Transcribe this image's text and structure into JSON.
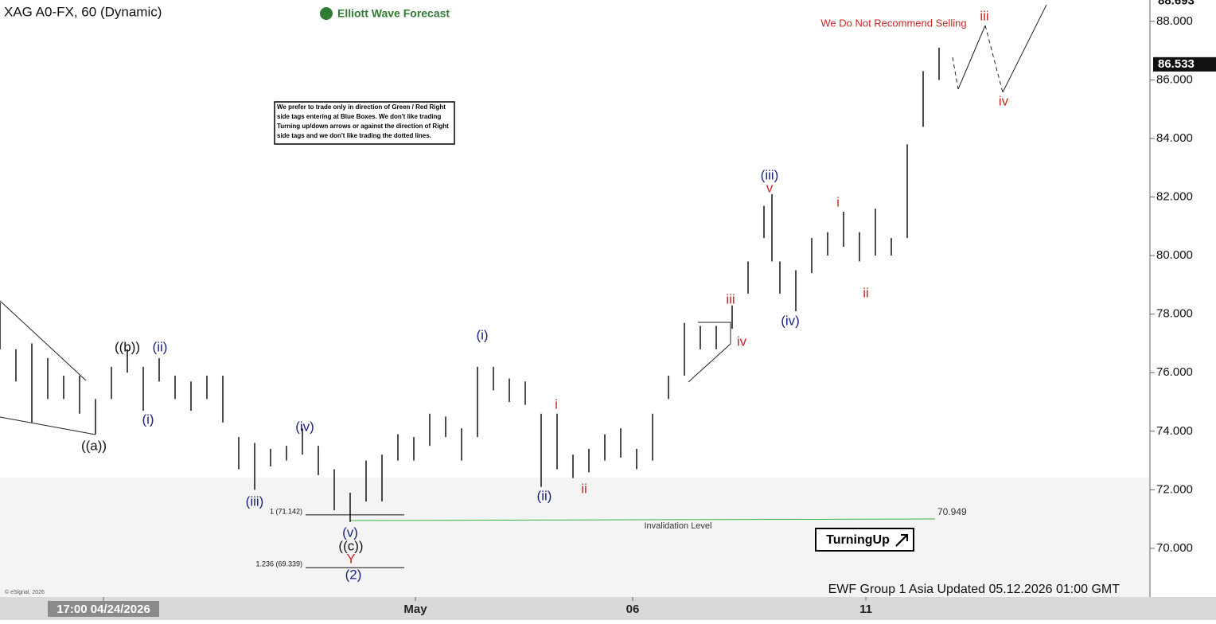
{
  "chart_data": {
    "type": "ohlc",
    "title": "XAG A0-FX, 60 (Dynamic)",
    "logo": "Elliott Wave Forecast",
    "note": [
      "We prefer to trade only in direction of Green / Red Right",
      "side tags entering at Blue Boxes. We don't like trading",
      "Turning up/down arrows or against the direction of Right",
      "side tags and we don't like trading the dotted lines."
    ],
    "warning": "We Do Not Recommend Selling",
    "signal": "TurningUp",
    "footer": "EWF Group 1 Asia Updated 05.12.2026 01:00 GMT",
    "copyright": "© eSignal, 2026",
    "color": "#111111",
    "x": [
      0,
      4,
      8,
      12,
      16,
      20,
      24,
      28,
      32,
      36,
      40,
      44,
      48,
      52,
      56,
      60,
      64,
      68,
      72,
      76,
      80,
      84,
      88,
      92,
      96,
      100,
      104,
      108,
      112,
      116,
      120,
      124,
      128,
      132,
      136,
      140,
      144,
      148,
      152,
      156,
      160,
      164,
      168,
      172,
      176,
      180,
      184,
      188,
      192,
      194,
      196,
      200,
      204,
      208,
      212,
      216,
      220,
      224,
      228,
      232,
      236
    ],
    "high": [
      78.4,
      76.8,
      77.0,
      76.5,
      75.9,
      75.9,
      75.1,
      76.2,
      76.8,
      76.2,
      76.5,
      75.9,
      75.7,
      75.9,
      75.9,
      73.8,
      73.6,
      73.4,
      73.5,
      74.1,
      73.5,
      72.7,
      71.9,
      73.0,
      73.2,
      73.9,
      73.8,
      74.6,
      74.5,
      74.1,
      76.2,
      76.2,
      75.8,
      75.7,
      74.6,
      74.6,
      73.2,
      73.4,
      73.9,
      74.1,
      73.4,
      74.6,
      75.9,
      77.7,
      77.6,
      77.6,
      78.3,
      79.8,
      81.7,
      82.1,
      79.8,
      79.5,
      80.6,
      80.8,
      81.5,
      80.8,
      81.6,
      80.6,
      83.8,
      86.3,
      87.1
    ],
    "low": [
      76.8,
      75.7,
      74.3,
      75.1,
      75.1,
      74.6,
      73.9,
      75.1,
      76.0,
      74.7,
      75.7,
      75.1,
      74.7,
      75.1,
      74.3,
      72.7,
      72.0,
      72.8,
      73.0,
      73.2,
      72.5,
      71.3,
      70.9,
      71.6,
      71.6,
      73.0,
      73.0,
      73.5,
      73.8,
      73.0,
      73.8,
      75.4,
      75.0,
      74.9,
      72.1,
      72.7,
      72.4,
      72.6,
      73.0,
      73.1,
      72.7,
      73.0,
      75.1,
      75.9,
      76.8,
      76.8,
      77.5,
      78.7,
      80.6,
      79.8,
      78.7,
      78.1,
      79.4,
      80.0,
      80.3,
      79.8,
      80.0,
      80.0,
      80.6,
      84.4,
      86.0
    ],
    "xlim": [
      0,
      289
    ],
    "xticks": [
      {
        "value": 26,
        "label": "17:00 04/24/2026"
      },
      {
        "value": 104.4,
        "label": "May"
      },
      {
        "value": 159,
        "label": "06"
      },
      {
        "value": 217.6,
        "label": "11"
      }
    ],
    "ylim": [
      68.34,
      88.73
    ],
    "yticks": [
      {
        "value": 70,
        "label": "70.000"
      },
      {
        "value": 72,
        "label": "72.000"
      },
      {
        "value": 74,
        "label": "74.000"
      },
      {
        "value": 76,
        "label": "76.000"
      },
      {
        "value": 78,
        "label": "78.000"
      },
      {
        "value": 80,
        "label": "80.000"
      },
      {
        "value": 82,
        "label": "82.000"
      },
      {
        "value": 84,
        "label": "84.000"
      },
      {
        "value": 86,
        "label": "86.000"
      },
      {
        "value": 88,
        "label": "88.000"
      }
    ],
    "price_tags": [
      88.693,
      86.533
    ],
    "fib_levels": [
      {
        "value": 71.142,
        "label": "1 (71.142)"
      },
      {
        "value": 69.339,
        "label": "1.236 (69.339)"
      }
    ],
    "invalidation": {
      "value": 70.949,
      "label": "Invalidation Level",
      "color": "#3cb043"
    },
    "wave_labels": [
      {
        "text": "((b))",
        "color": "#111111"
      },
      {
        "text": "(ii)",
        "color": "#1a237e"
      },
      {
        "text": "(i)",
        "color": "#1a237e"
      },
      {
        "text": "((a))",
        "color": "#111111"
      },
      {
        "text": "(iv)",
        "color": "#1a237e"
      },
      {
        "text": "(iii)",
        "color": "#1a237e"
      },
      {
        "text": "(v)",
        "color": "#1a237e"
      },
      {
        "text": "((c))",
        "color": "#111111"
      },
      {
        "text": "Y",
        "color": "#c62828"
      },
      {
        "text": "(2)",
        "color": "#1a237e"
      },
      {
        "text": "(i)",
        "color": "#1a237e"
      },
      {
        "text": "(ii)",
        "color": "#1a237e"
      },
      {
        "text": "i",
        "color": "#c62828"
      },
      {
        "text": "ii",
        "color": "#c62828"
      },
      {
        "text": "iii",
        "color": "#c62828"
      },
      {
        "text": "iv",
        "color": "#c62828"
      },
      {
        "text": "(iii)",
        "color": "#1a237e"
      },
      {
        "text": "v",
        "color": "#c62828"
      },
      {
        "text": "(iv)",
        "color": "#1a237e"
      },
      {
        "text": "i",
        "color": "#c62828"
      },
      {
        "text": "ii",
        "color": "#c62828"
      },
      {
        "text": "iii",
        "color": "#c62828"
      },
      {
        "text": "iv",
        "color": "#c62828"
      }
    ]
  }
}
